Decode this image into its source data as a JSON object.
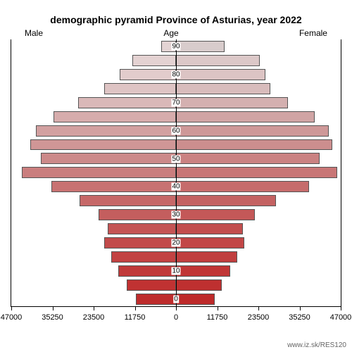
{
  "title": "demographic pyramid Province of Asturias, year 2022",
  "title_fontsize": 14,
  "labels": {
    "male": "Male",
    "age": "Age",
    "female": "Female"
  },
  "label_fontsize": 12,
  "source": "www.iz.sk/RES120",
  "chart": {
    "type": "population-pyramid",
    "x_max": 47000,
    "x_ticks": [
      47000,
      35250,
      23500,
      11750,
      0
    ],
    "x_ticks_right": [
      0,
      11750,
      23500,
      35250,
      47000
    ],
    "age_labels": [
      90,
      80,
      70,
      60,
      50,
      40,
      30,
      20,
      10,
      0
    ],
    "bar_border": "#555555",
    "background": "#ffffff",
    "bars": [
      {
        "age": 90,
        "male": 4200,
        "female": 13800,
        "male_color": "#e4d4d4",
        "female_color": "#d8cccc"
      },
      {
        "age": 85,
        "male": 12500,
        "female": 24000,
        "male_color": "#e4d2d2",
        "female_color": "#dcc8c8"
      },
      {
        "age": 80,
        "male": 16000,
        "female": 25500,
        "male_color": "#e2cccc",
        "female_color": "#dcc4c4"
      },
      {
        "age": 75,
        "male": 20500,
        "female": 27000,
        "male_color": "#dec4c4",
        "female_color": "#d8bcbc"
      },
      {
        "age": 70,
        "male": 28000,
        "female": 32000,
        "male_color": "#dab8b8",
        "female_color": "#d4b0b0"
      },
      {
        "age": 65,
        "male": 35000,
        "female": 39500,
        "male_color": "#d6acac",
        "female_color": "#d0a4a4"
      },
      {
        "age": 60,
        "male": 40000,
        "female": 43500,
        "male_color": "#d2a0a0",
        "female_color": "#ce9898"
      },
      {
        "age": 55,
        "male": 41500,
        "female": 44500,
        "male_color": "#d09696",
        "female_color": "#cc8e8e"
      },
      {
        "age": 50,
        "male": 38500,
        "female": 41000,
        "male_color": "#cc8a8a",
        "female_color": "#ca8282"
      },
      {
        "age": 45,
        "male": 44000,
        "female": 46000,
        "male_color": "#ca7e7e",
        "female_color": "#c87676"
      },
      {
        "age": 40,
        "male": 35500,
        "female": 38000,
        "male_color": "#c87272",
        "female_color": "#c66c6c"
      },
      {
        "age": 35,
        "male": 27500,
        "female": 28500,
        "male_color": "#c66868",
        "female_color": "#c46262"
      },
      {
        "age": 30,
        "male": 22000,
        "female": 22500,
        "male_color": "#c45e5e",
        "female_color": "#c45858"
      },
      {
        "age": 25,
        "male": 19500,
        "female": 19000,
        "male_color": "#c45454",
        "female_color": "#c24e4e"
      },
      {
        "age": 20,
        "male": 20500,
        "female": 19500,
        "male_color": "#c24a4a",
        "female_color": "#c24646"
      },
      {
        "age": 15,
        "male": 18500,
        "female": 17500,
        "male_color": "#c24242",
        "female_color": "#c03e3e"
      },
      {
        "age": 10,
        "male": 16500,
        "female": 15500,
        "male_color": "#c03a3a",
        "female_color": "#c03636"
      },
      {
        "age": 5,
        "male": 14000,
        "female": 13000,
        "male_color": "#c03232",
        "female_color": "#be3030"
      },
      {
        "age": 0,
        "male": 11500,
        "female": 11000,
        "male_color": "#be2c2c",
        "female_color": "#be2a2a"
      }
    ]
  }
}
